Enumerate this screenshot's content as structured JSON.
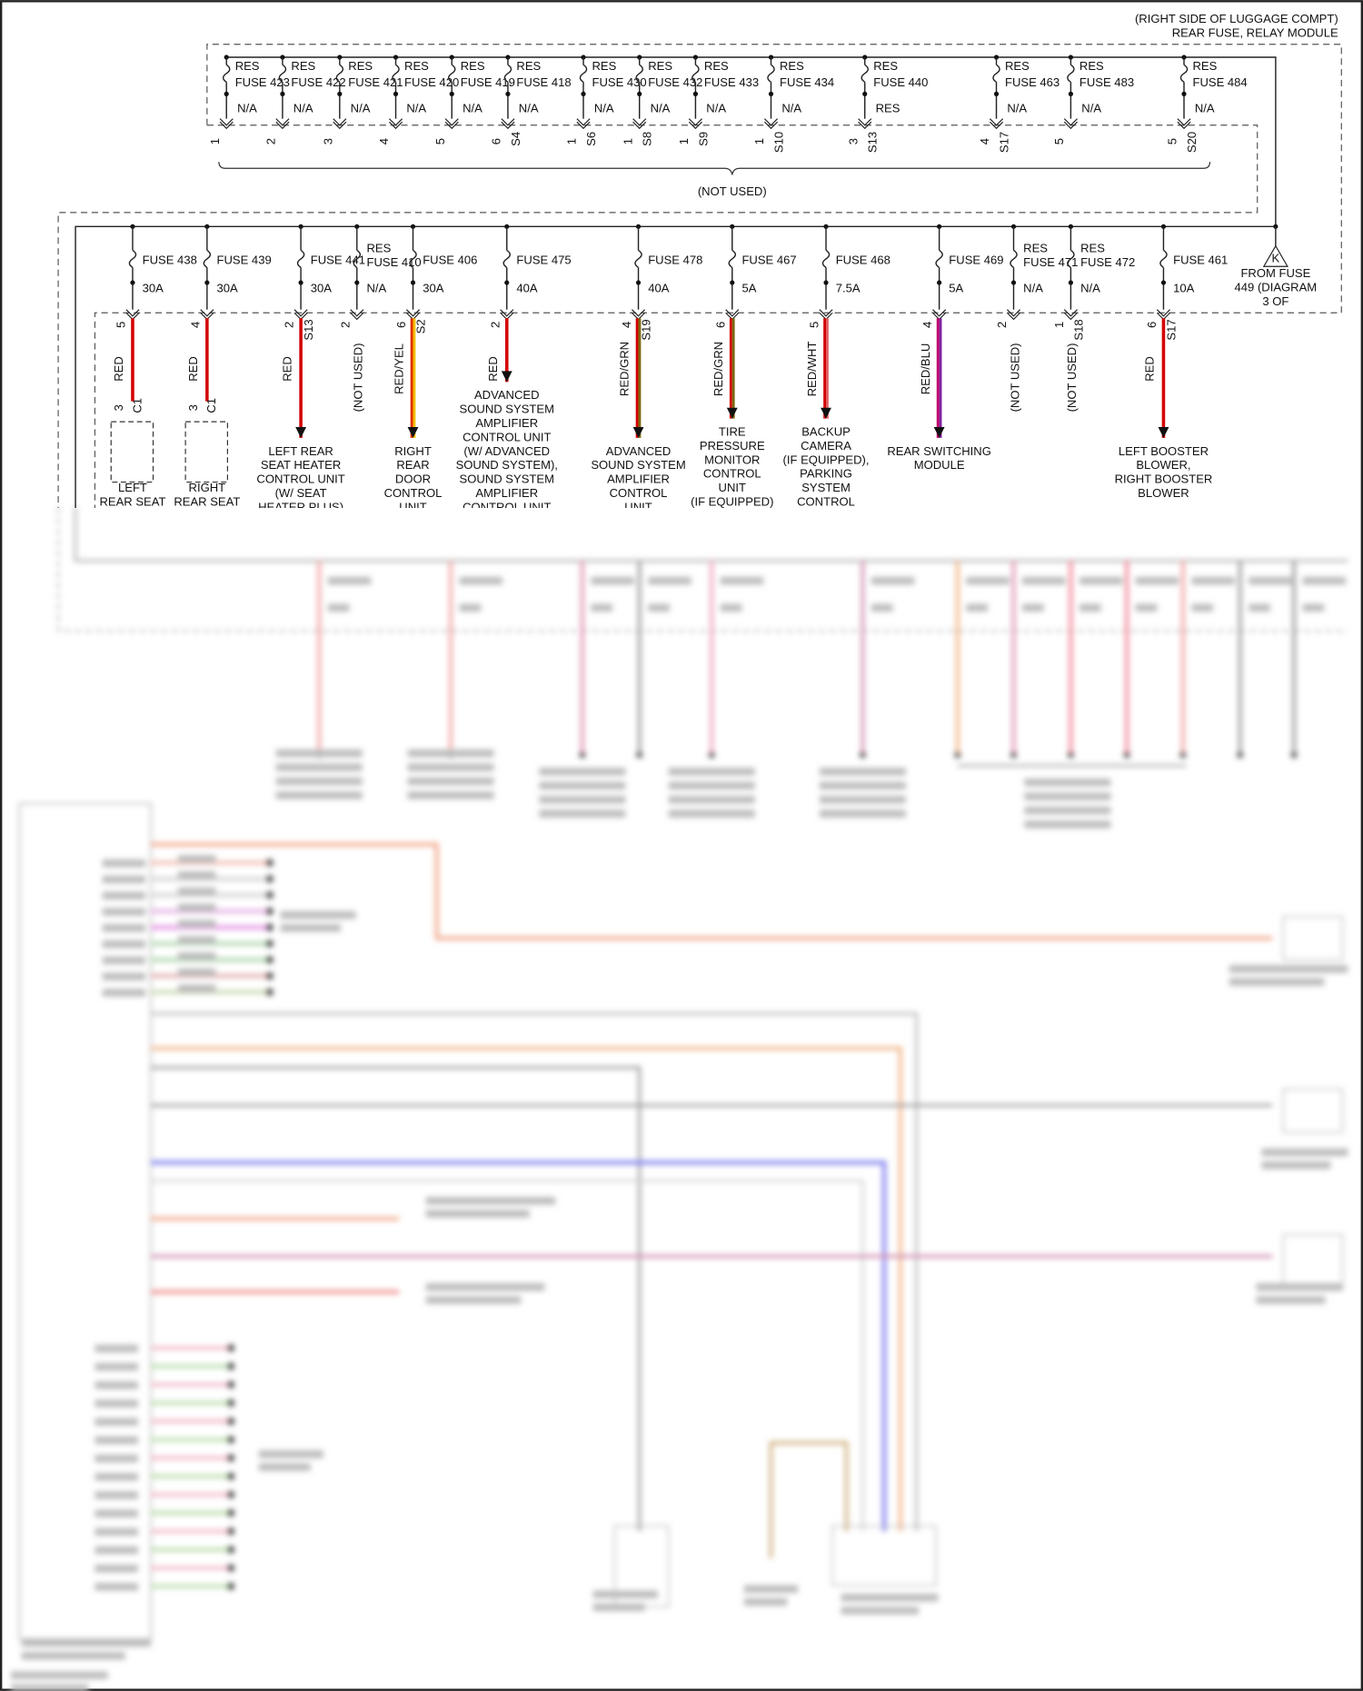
{
  "header": {
    "lines": [
      "(RIGHT SIDE OF LUGGAGE COMPT)",
      "REAR FUSE, RELAY MODULE"
    ]
  },
  "top_fuses": [
    {
      "lines": [
        "RES",
        "FUSE 423"
      ],
      "status": "N/A",
      "pin": "1"
    },
    {
      "lines": [
        "RES",
        "FUSE 422"
      ],
      "status": "N/A",
      "pin": "2"
    },
    {
      "lines": [
        "RES",
        "FUSE 421"
      ],
      "status": "N/A",
      "pin": "3"
    },
    {
      "lines": [
        "RES",
        "FUSE 420"
      ],
      "status": "N/A",
      "pin": "4"
    },
    {
      "lines": [
        "RES",
        "FUSE 419"
      ],
      "status": "N/A",
      "pin": "5"
    },
    {
      "lines": [
        "RES",
        "FUSE 418"
      ],
      "status": "N/A",
      "pin": "6",
      "connector": "S4"
    },
    {
      "lines": [
        "RES",
        "FUSE 430"
      ],
      "status": "N/A",
      "pin": "1",
      "connector": "S6"
    },
    {
      "lines": [
        "RES",
        "FUSE 432"
      ],
      "status": "N/A",
      "pin": "1",
      "connector": "S8"
    },
    {
      "lines": [
        "RES",
        "FUSE 433"
      ],
      "status": "N/A",
      "pin": "1",
      "connector": "S9"
    },
    {
      "lines": [
        "RES",
        "FUSE 434"
      ],
      "status": "N/A",
      "pin": "1",
      "connector": "S10"
    },
    {
      "lines": [
        "RES",
        "FUSE 440"
      ],
      "status": "RES",
      "pin": "3",
      "connector": "S13"
    },
    {
      "lines": [
        "RES",
        "FUSE 463"
      ],
      "status": "N/A",
      "pin": "4",
      "connector": "S17"
    },
    {
      "lines": [
        "RES",
        "FUSE 483"
      ],
      "status": "N/A",
      "pin": "5"
    },
    {
      "lines": [
        "RES",
        "FUSE 484"
      ],
      "status": "N/A",
      "pin": "5",
      "connector": "S20"
    }
  ],
  "top_note": "(NOT USED)",
  "bottom_fuses": [
    {
      "lines": [
        "FUSE 438"
      ],
      "rating": "30A",
      "pin": "5",
      "wire": "RED",
      "wire_colors": [
        "#d40000"
      ],
      "destination": [
        "LEFT",
        "REAR SEAT"
      ],
      "dest_pin": "3",
      "dest_connector": "C1"
    },
    {
      "lines": [
        "FUSE 439"
      ],
      "rating": "30A",
      "pin": "4",
      "wire": "RED",
      "wire_colors": [
        "#d40000"
      ],
      "destination": [
        "RIGHT",
        "REAR SEAT"
      ],
      "dest_pin": "3",
      "dest_connector": "C1"
    },
    {
      "lines": [
        "FUSE 441"
      ],
      "rating": "30A",
      "pin": "2",
      "connector": "S13",
      "wire": "RED",
      "wire_colors": [
        "#d40000"
      ],
      "destination": [
        "LEFT REAR",
        "SEAT HEATER",
        "CONTROL UNIT",
        "(W/ SEAT",
        "HEATER PLUS)"
      ]
    },
    {
      "lines": [
        "RES",
        "FUSE 410"
      ],
      "rating": "N/A",
      "pin": "2",
      "note": "(NOT USED)"
    },
    {
      "lines": [
        "FUSE 406"
      ],
      "rating": "30A",
      "pin": "6",
      "connector": "S2",
      "wire": "RED/YEL",
      "wire_colors": [
        "#e03000",
        "#f0c000"
      ],
      "destination": [
        "RIGHT",
        "REAR",
        "DOOR",
        "CONTROL",
        "UNIT"
      ]
    },
    {
      "lines": [
        "FUSE 475"
      ],
      "rating": "40A",
      "pin": "2",
      "wire": "RED",
      "wire_colors": [
        "#d40000"
      ],
      "destination": [
        "ADVANCED",
        "SOUND SYSTEM",
        "AMPLIFIER",
        "CONTROL UNIT",
        "(W/ ADVANCED",
        "SOUND SYSTEM),",
        "SOUND SYSTEM",
        "AMPLIFIER",
        "CONTROL UNIT"
      ]
    },
    {
      "lines": [
        "FUSE 478"
      ],
      "rating": "40A",
      "pin": "4",
      "connector": "S19",
      "wire": "RED/GRN",
      "wire_colors": [
        "#d40000",
        "#7a6a10"
      ],
      "destination": [
        "ADVANCED",
        "SOUND SYSTEM",
        "AMPLIFIER",
        "CONTROL",
        "UNIT"
      ]
    },
    {
      "lines": [
        "FUSE 467"
      ],
      "rating": "5A",
      "pin": "6",
      "wire": "RED/GRN",
      "wire_colors": [
        "#d40000",
        "#7a6a10"
      ],
      "destination": [
        "TIRE",
        "PRESSURE",
        "MONITOR",
        "CONTROL",
        "UNIT",
        "(IF EQUIPPED)"
      ]
    },
    {
      "lines": [
        "FUSE 468"
      ],
      "rating": "7.5A",
      "pin": "5",
      "wire": "RED/WHT",
      "wire_colors": [
        "#d40000",
        "#e06060"
      ],
      "destination": [
        "BACKUP",
        "CAMERA",
        "(IF EQUIPPED),",
        "PARKING",
        "SYSTEM",
        "CONTROL"
      ]
    },
    {
      "lines": [
        "FUSE 469"
      ],
      "rating": "5A",
      "pin": "4",
      "wire": "RED/BLU",
      "wire_colors": [
        "#c0006a",
        "#8020a0"
      ],
      "destination": [
        "REAR SWITCHING",
        "MODULE"
      ]
    },
    {
      "lines": [
        "RES",
        "FUSE 471"
      ],
      "rating": "N/A",
      "pin": "2",
      "note": "(NOT USED)"
    },
    {
      "lines": [
        "RES",
        "FUSE 472"
      ],
      "rating": "N/A",
      "pin": "1",
      "connector": "S18",
      "note": "(NOT USED)"
    },
    {
      "lines": [
        "FUSE 461"
      ],
      "rating": "10A",
      "pin": "6",
      "connector": "S17",
      "wire": "RED",
      "wire_colors": [
        "#d40000"
      ],
      "destination": [
        "LEFT BOOSTER",
        "BLOWER,",
        "RIGHT BOOSTER",
        "BLOWER"
      ]
    }
  ],
  "feed": {
    "tag": "K",
    "lines": [
      "FROM FUSE",
      "449 (DIAGRAM",
      "3 OF"
    ]
  }
}
